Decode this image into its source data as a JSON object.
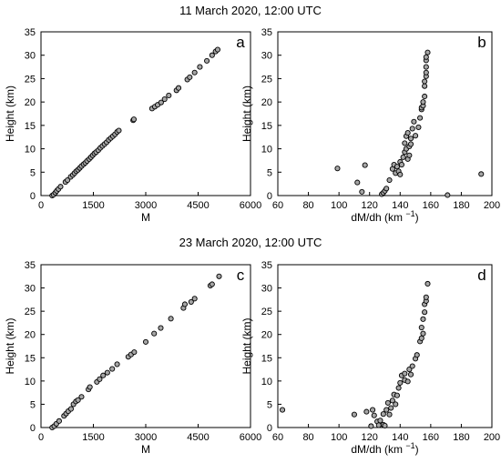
{
  "titles": {
    "top": "11 March 2020, 12:00 UTC",
    "bottom": "23 March 2020, 12:00 UTC"
  },
  "style": {
    "marker_fill": "#a6a6a6",
    "marker_stroke": "#000000",
    "axis_color": "#000000"
  },
  "chart_data": [
    {
      "type": "scatter",
      "panel_label": "a",
      "xlabel": "M",
      "ylabel": "Height (km)",
      "xlim": [
        0,
        6000
      ],
      "ylim": [
        0,
        35
      ],
      "xticks": [
        0,
        1500,
        3000,
        4500,
        6000
      ],
      "yticks": [
        0,
        5,
        10,
        15,
        20,
        25,
        30,
        35
      ],
      "points": [
        [
          320,
          0
        ],
        [
          360,
          0.2
        ],
        [
          410,
          0.6
        ],
        [
          450,
          1.0
        ],
        [
          500,
          1.4
        ],
        [
          560,
          1.9
        ],
        [
          700,
          2.9
        ],
        [
          760,
          3.3
        ],
        [
          850,
          4.0
        ],
        [
          910,
          4.4
        ],
        [
          960,
          4.8
        ],
        [
          1010,
          5.2
        ],
        [
          1060,
          5.5
        ],
        [
          1110,
          5.9
        ],
        [
          1160,
          6.3
        ],
        [
          1220,
          6.7
        ],
        [
          1270,
          7.0
        ],
        [
          1320,
          7.4
        ],
        [
          1380,
          7.8
        ],
        [
          1430,
          8.2
        ],
        [
          1480,
          8.6
        ],
        [
          1530,
          9.0
        ],
        [
          1580,
          9.3
        ],
        [
          1640,
          9.7
        ],
        [
          1700,
          10.2
        ],
        [
          1760,
          10.6
        ],
        [
          1820,
          11.0
        ],
        [
          1880,
          11.4
        ],
        [
          1940,
          11.9
        ],
        [
          2000,
          12.3
        ],
        [
          2060,
          12.7
        ],
        [
          2120,
          13.1
        ],
        [
          2180,
          13.6
        ],
        [
          2230,
          13.9
        ],
        [
          2640,
          16.1
        ],
        [
          2660,
          16.3
        ],
        [
          3180,
          18.6
        ],
        [
          3260,
          19.0
        ],
        [
          3340,
          19.4
        ],
        [
          3440,
          19.9
        ],
        [
          3540,
          20.6
        ],
        [
          3660,
          21.4
        ],
        [
          3880,
          22.5
        ],
        [
          3940,
          23.0
        ],
        [
          4190,
          24.8
        ],
        [
          4260,
          25.3
        ],
        [
          4400,
          26.3
        ],
        [
          4550,
          27.5
        ],
        [
          4750,
          28.8
        ],
        [
          4900,
          30.0
        ],
        [
          5000,
          30.8
        ],
        [
          5060,
          31.2
        ]
      ]
    },
    {
      "type": "scatter",
      "panel_label": "b",
      "xlabel": "dM/dh (km",
      "xlabel_exp": "−1",
      "xlabel_close": ")",
      "ylabel": "Height (km)",
      "xlim": [
        60,
        200
      ],
      "ylim": [
        0,
        35
      ],
      "xticks": [
        60,
        80,
        100,
        120,
        140,
        160,
        180,
        200
      ],
      "yticks": [
        0,
        5,
        10,
        15,
        20,
        25,
        30,
        35
      ],
      "points": [
        [
          99,
          5.8
        ],
        [
          112,
          2.8
        ],
        [
          115,
          0.8
        ],
        [
          117,
          6.5
        ],
        [
          128,
          0.3
        ],
        [
          129,
          0.6
        ],
        [
          130,
          1.0
        ],
        [
          131,
          1.5
        ],
        [
          133,
          3.3
        ],
        [
          135,
          5.7
        ],
        [
          136,
          6.6
        ],
        [
          137,
          4.8
        ],
        [
          138,
          6.2
        ],
        [
          139,
          5.2
        ],
        [
          140,
          4.5
        ],
        [
          140,
          7.2
        ],
        [
          141,
          6.6
        ],
        [
          142,
          8.2
        ],
        [
          143,
          9.3
        ],
        [
          143,
          11.2
        ],
        [
          144,
          10.0
        ],
        [
          144,
          12.7
        ],
        [
          145,
          7.8
        ],
        [
          145,
          13.4
        ],
        [
          146,
          10.5
        ],
        [
          146,
          8.6
        ],
        [
          147,
          11.0
        ],
        [
          147,
          12.2
        ],
        [
          148,
          14.3
        ],
        [
          149,
          15.8
        ],
        [
          150,
          12.8
        ],
        [
          152,
          14.6
        ],
        [
          153,
          16.6
        ],
        [
          154,
          18.4
        ],
        [
          154,
          18.8
        ],
        [
          155,
          19.2
        ],
        [
          155,
          20.0
        ],
        [
          156,
          21.2
        ],
        [
          156,
          23.4
        ],
        [
          156,
          24.4
        ],
        [
          157,
          25.5
        ],
        [
          157,
          26.3
        ],
        [
          157,
          27.5
        ],
        [
          157,
          28.9
        ],
        [
          157,
          29.6
        ],
        [
          158,
          30.6
        ],
        [
          171,
          0.1
        ],
        [
          193,
          4.6
        ]
      ]
    },
    {
      "type": "scatter",
      "panel_label": "c",
      "xlabel": "M",
      "ylabel": "Height (km)",
      "xlim": [
        0,
        6000
      ],
      "ylim": [
        0,
        35
      ],
      "xticks": [
        0,
        1500,
        3000,
        4500,
        6000
      ],
      "yticks": [
        0,
        5,
        10,
        15,
        20,
        25,
        30,
        35
      ],
      "points": [
        [
          320,
          0
        ],
        [
          380,
          0.3
        ],
        [
          440,
          0.8
        ],
        [
          520,
          1.4
        ],
        [
          660,
          2.5
        ],
        [
          720,
          3.0
        ],
        [
          780,
          3.5
        ],
        [
          860,
          4.0
        ],
        [
          930,
          5.0
        ],
        [
          1000,
          5.6
        ],
        [
          1060,
          5.9
        ],
        [
          1160,
          6.6
        ],
        [
          1360,
          8.2
        ],
        [
          1400,
          8.7
        ],
        [
          1600,
          9.8
        ],
        [
          1680,
          10.4
        ],
        [
          1780,
          11.2
        ],
        [
          1900,
          11.8
        ],
        [
          2040,
          12.6
        ],
        [
          2180,
          13.6
        ],
        [
          2500,
          15.2
        ],
        [
          2580,
          15.7
        ],
        [
          2670,
          16.2
        ],
        [
          3000,
          18.4
        ],
        [
          3240,
          20.2
        ],
        [
          3430,
          21.4
        ],
        [
          3720,
          23.4
        ],
        [
          4080,
          25.7
        ],
        [
          4120,
          26.5
        ],
        [
          4300,
          27.0
        ],
        [
          4400,
          27.7
        ],
        [
          4850,
          30.5
        ],
        [
          4900,
          30.8
        ],
        [
          5100,
          32.5
        ]
      ]
    },
    {
      "type": "scatter",
      "panel_label": "d",
      "xlabel": "dM/dh (km",
      "xlabel_exp": "−1",
      "xlabel_close": ")",
      "ylabel": "Height (km)",
      "xlim": [
        60,
        200
      ],
      "ylim": [
        0,
        35
      ],
      "xticks": [
        60,
        80,
        100,
        120,
        140,
        160,
        180,
        200
      ],
      "yticks": [
        0,
        5,
        10,
        15,
        20,
        25,
        30,
        35
      ],
      "points": [
        [
          63,
          3.8
        ],
        [
          110,
          2.8
        ],
        [
          118,
          3.4
        ],
        [
          121,
          0.3
        ],
        [
          122,
          3.8
        ],
        [
          123,
          2.6
        ],
        [
          125,
          1.3
        ],
        [
          126,
          0.5
        ],
        [
          127,
          1.5
        ],
        [
          129,
          0.6
        ],
        [
          129,
          2.9
        ],
        [
          130,
          0.4
        ],
        [
          131,
          3.8
        ],
        [
          132,
          5.3
        ],
        [
          133,
          2.8
        ],
        [
          134,
          4.2
        ],
        [
          135,
          5.8
        ],
        [
          136,
          7.1
        ],
        [
          137,
          5.0
        ],
        [
          138,
          6.9
        ],
        [
          139,
          8.5
        ],
        [
          140,
          9.6
        ],
        [
          141,
          11.2
        ],
        [
          143,
          10.2
        ],
        [
          143,
          11.6
        ],
        [
          145,
          9.9
        ],
        [
          146,
          12.5
        ],
        [
          147,
          11.4
        ],
        [
          148,
          13.2
        ],
        [
          150,
          14.8
        ],
        [
          151,
          15.6
        ],
        [
          153,
          18.5
        ],
        [
          154,
          19.2
        ],
        [
          154,
          21.5
        ],
        [
          155,
          20.2
        ],
        [
          155,
          23.3
        ],
        [
          156,
          24.8
        ],
        [
          156,
          26.5
        ],
        [
          157,
          27.2
        ],
        [
          157,
          28.0
        ],
        [
          158,
          30.9
        ]
      ]
    }
  ]
}
